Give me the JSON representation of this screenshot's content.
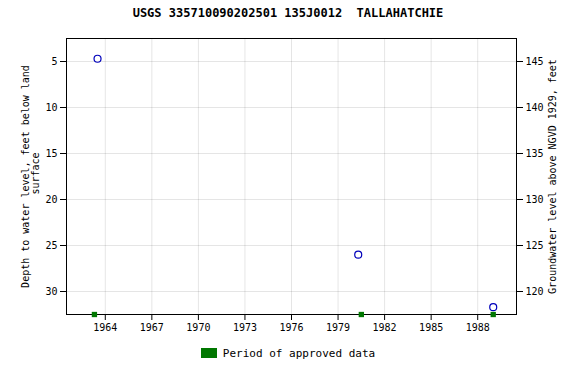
{
  "chart_data": {
    "type": "scatter",
    "title": "USGS 335710090202501 135J0012  TALLAHATCHIE",
    "ylabel": "Depth to water level, feet below land\n surface",
    "y2label": "Groundwater level above NGVD 1929, feet",
    "xlim": [
      1961.5,
      1990.5
    ],
    "xticks": [
      1964,
      1967,
      1970,
      1973,
      1976,
      1979,
      1982,
      1985,
      1988
    ],
    "ylim": [
      32.5,
      2.5
    ],
    "yticks": [
      5,
      10,
      15,
      20,
      25,
      30
    ],
    "y2lim": [
      117.5,
      147.5
    ],
    "y2ticks": [
      120,
      125,
      130,
      135,
      140,
      145
    ],
    "grid": true,
    "legend": "bottom",
    "series": [
      {
        "color": "#0000bb",
        "marker": "circle",
        "x": [
          1963.5,
          1980.3,
          1989.0
        ],
        "values": [
          4.7,
          26.0,
          31.7
        ]
      },
      {
        "name": "Period of approved data",
        "color": "#007700",
        "marker": "square",
        "x": [
          1963.3,
          1980.5,
          1989.0
        ],
        "values": [
          32.5,
          32.5,
          32.5
        ]
      }
    ]
  }
}
